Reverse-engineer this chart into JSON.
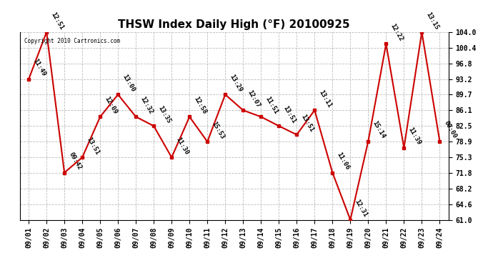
{
  "title": "THSW Index Daily High (°F) 20100925",
  "copyright": "Copyright 2010 Cartronics.com",
  "x_labels": [
    "09/01",
    "09/02",
    "09/03",
    "09/04",
    "09/05",
    "09/06",
    "09/07",
    "09/08",
    "09/09",
    "09/10",
    "09/11",
    "09/12",
    "09/13",
    "09/14",
    "09/15",
    "09/16",
    "09/17",
    "09/18",
    "09/19",
    "09/20",
    "09/21",
    "09/22",
    "09/23",
    "09/24"
  ],
  "y_values": [
    93.2,
    104.0,
    71.8,
    75.3,
    84.6,
    89.7,
    84.6,
    82.5,
    75.3,
    84.6,
    78.9,
    89.7,
    86.1,
    84.6,
    82.5,
    80.5,
    86.1,
    71.8,
    61.0,
    79.0,
    101.3,
    77.5,
    104.0,
    79.0
  ],
  "time_labels": [
    "11:49",
    "12:51",
    "09:42",
    "13:51",
    "12:09",
    "13:00",
    "12:32",
    "13:35",
    "11:30",
    "12:58",
    "15:53",
    "13:29",
    "12:07",
    "11:51",
    "13:51",
    "13:51",
    "13:11",
    "11:06",
    "12:31",
    "15:14",
    "12:22",
    "11:39",
    "13:15",
    "00:00"
  ],
  "yticks": [
    61.0,
    64.6,
    68.2,
    71.8,
    75.3,
    78.9,
    82.5,
    86.1,
    89.7,
    93.2,
    96.8,
    100.4,
    104.0
  ],
  "ylim": [
    61.0,
    104.0
  ],
  "line_color": "#cc0000",
  "marker_color": "#cc0000",
  "bg_color": "#ffffff",
  "grid_color": "#bbbbbb",
  "title_fontsize": 11,
  "tick_fontsize": 7,
  "annotation_fontsize": 6.5,
  "annotation_rotation": -60
}
